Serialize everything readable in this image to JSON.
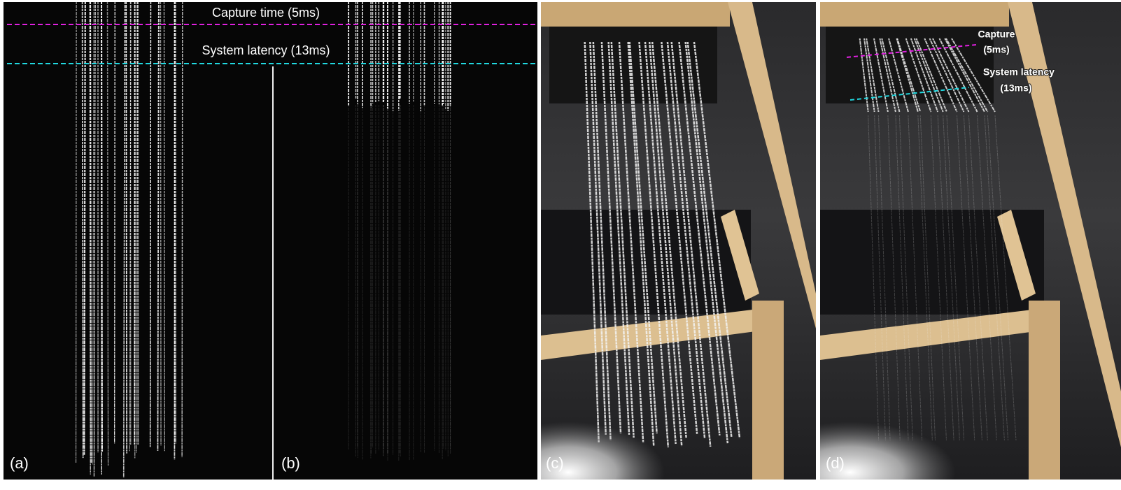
{
  "panels": [
    {
      "label": "(a)"
    },
    {
      "label": "(b)"
    },
    {
      "label": "(c)"
    },
    {
      "label": "(d)"
    }
  ],
  "annotations_ab": {
    "capture": "Capture time (5ms)",
    "latency": "System latency (13ms)"
  },
  "annotations_d": {
    "capture": [
      "Capture",
      "(5ms)"
    ],
    "latency": [
      "System latency",
      "(13ms)"
    ]
  }
}
